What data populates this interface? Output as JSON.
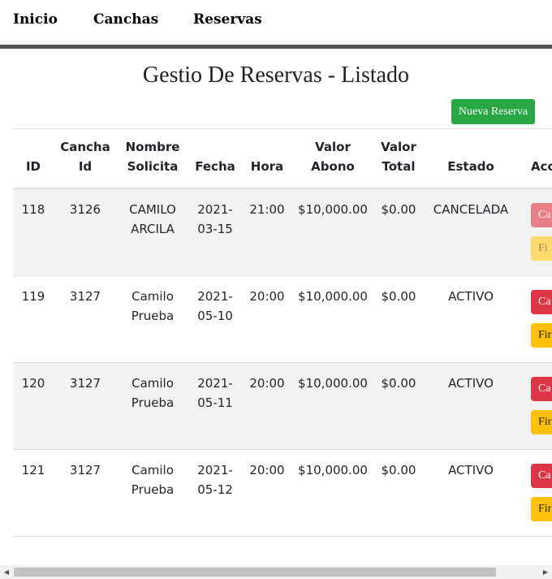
{
  "nav": {
    "items": [
      {
        "label": "Inicio"
      },
      {
        "label": "Canchas"
      },
      {
        "label": "Reservas"
      }
    ]
  },
  "page": {
    "title": "Gestio De Reservas - Listado",
    "new_button": "Nueva Reserva"
  },
  "table": {
    "headers": {
      "id": "ID",
      "cancha_1": "Cancha",
      "cancha_2": "Id",
      "nombre_1": "Nombre",
      "nombre_2": "Solicita",
      "fecha": "Fecha",
      "hora": "Hora",
      "abono_1": "Valor",
      "abono_2": "Abono",
      "total_1": "Valor",
      "total_2": "Total",
      "estado": "Estado",
      "acciones": "Acc"
    },
    "rows": [
      {
        "id": "118",
        "cancha": "3126",
        "nombre_1": "CAMILO",
        "nombre_2": "ARCILA",
        "fecha_1": "2021-",
        "fecha_2": "03-15",
        "hora": "21:00",
        "abono": "$10,000.00",
        "total": "$0.00",
        "estado": "CANCELADA",
        "btn_cancel": "Ca",
        "btn_fin": "Fi"
      },
      {
        "id": "119",
        "cancha": "3127",
        "nombre_1": "Camilo",
        "nombre_2": "Prueba",
        "fecha_1": "2021-",
        "fecha_2": "05-10",
        "hora": "20:00",
        "abono": "$10,000.00",
        "total": "$0.00",
        "estado": "ACTIVO",
        "btn_cancel": "Ca",
        "btn_fin": "Fir"
      },
      {
        "id": "120",
        "cancha": "3127",
        "nombre_1": "Camilo",
        "nombre_2": "Prueba",
        "fecha_1": "2021-",
        "fecha_2": "05-11",
        "hora": "20:00",
        "abono": "$10,000.00",
        "total": "$0.00",
        "estado": "ACTIVO",
        "btn_cancel": "Ca",
        "btn_fin": "Fir"
      },
      {
        "id": "121",
        "cancha": "3127",
        "nombre_1": "Camilo",
        "nombre_2": "Prueba",
        "fecha_1": "2021-",
        "fecha_2": "05-12",
        "hora": "20:00",
        "abono": "$10,000.00",
        "total": "$0.00",
        "estado": "ACTIVO",
        "btn_cancel": "Ca",
        "btn_fin": "Fir"
      }
    ]
  },
  "scrollbar": {
    "left_icon": "scroll-left-arrow-icon",
    "right_icon": "scroll-right-arrow-icon"
  },
  "colors": {
    "primary_success": "#28a745",
    "danger": "#dc3545",
    "warning": "#ffc107",
    "nav_border": "#555555"
  }
}
